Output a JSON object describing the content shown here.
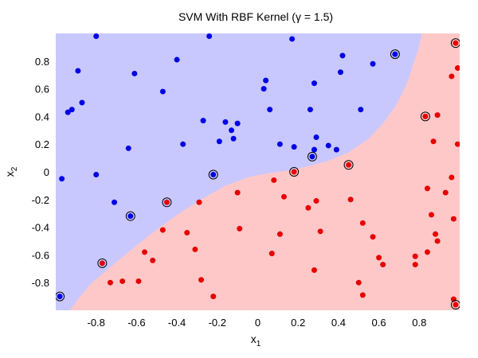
{
  "chart_data": {
    "type": "scatter",
    "title": "SVM With RBF Kernel (γ = 1.5)",
    "xlabel": "x",
    "xlabel_sub": "1",
    "ylabel": "x",
    "ylabel_sub": "2",
    "xlim": [
      -1,
      1
    ],
    "ylim": [
      -1,
      1
    ],
    "xticks": [
      -0.8,
      -0.6,
      -0.4,
      -0.2,
      0,
      0.2,
      0.4,
      0.6,
      0.8
    ],
    "xtick_labels": [
      "-0.8",
      "-0.6",
      "-0.4",
      "-0.2",
      "0",
      "0.2",
      "0.4",
      "0.6",
      "0.8"
    ],
    "yticks": [
      -0.8,
      -0.6,
      -0.4,
      -0.2,
      0,
      0.2,
      0.4,
      0.6,
      0.8
    ],
    "ytick_labels": [
      "-0.8",
      "-0.6",
      "-0.4",
      "-0.2",
      "0",
      "0.2",
      "0.4",
      "0.6",
      "0.8"
    ],
    "grid": false,
    "colors": {
      "class_a_region": "#c8c8ff",
      "class_b_region": "#ffc8c8",
      "class_a_point": "#0000e6",
      "class_b_point": "#e60000",
      "support_vector_ring": "#000000"
    },
    "boundary": {
      "x": [
        -0.93,
        -0.88,
        -0.82,
        -0.74,
        -0.64,
        -0.52,
        -0.4,
        -0.28,
        -0.16,
        -0.05,
        0.05,
        0.15,
        0.25,
        0.35,
        0.45,
        0.55,
        0.62,
        0.68,
        0.72,
        0.75,
        0.77,
        0.79,
        0.8,
        0.81,
        0.81
      ],
      "y": [
        -1.0,
        -0.9,
        -0.8,
        -0.7,
        -0.58,
        -0.44,
        -0.31,
        -0.2,
        -0.1,
        -0.04,
        -0.01,
        0.01,
        0.04,
        0.08,
        0.14,
        0.24,
        0.35,
        0.47,
        0.58,
        0.68,
        0.78,
        0.86,
        0.92,
        0.97,
        1.0
      ]
    },
    "series": [
      {
        "class": "blue",
        "x": [
          -0.8,
          -0.24,
          -0.4,
          -0.94,
          -0.92,
          -0.89,
          -0.87,
          -0.61,
          -0.47,
          -0.27,
          -0.16,
          -0.12,
          -0.13,
          -0.1,
          -0.19,
          0.04,
          0.03,
          0.17,
          0.28,
          0.41,
          0.42,
          0.57,
          0.51,
          0.26,
          0.28,
          0.29,
          0.35,
          0.39,
          -0.37,
          -0.64,
          -0.8,
          -0.97,
          -0.71,
          0.18,
          0.11,
          0.06
        ],
        "y": [
          0.98,
          0.98,
          0.81,
          0.43,
          0.45,
          0.73,
          0.5,
          0.71,
          0.58,
          0.37,
          0.36,
          0.24,
          0.3,
          0.35,
          0.22,
          0.66,
          0.6,
          0.96,
          0.64,
          0.72,
          0.84,
          0.78,
          0.45,
          0.45,
          0.16,
          0.25,
          0.19,
          0.16,
          0.2,
          0.17,
          -0.02,
          -0.05,
          -0.22,
          0.18,
          0.2,
          0.45
        ]
      },
      {
        "class": "red",
        "x": [
          0.99,
          0.96,
          0.99,
          0.89,
          0.87,
          0.84,
          0.96,
          0.97,
          0.88,
          0.93,
          0.86,
          0.78,
          0.6,
          0.57,
          0.52,
          0.46,
          0.31,
          0.29,
          0.25,
          0.13,
          0.08,
          0.11,
          -0.09,
          -0.1,
          -0.29,
          -0.31,
          -0.47,
          -0.52,
          -0.59,
          -0.67,
          -0.73,
          -0.56,
          -0.35,
          -0.28,
          -0.22,
          0.07,
          0.28,
          0.5,
          0.52,
          0.62,
          0.78,
          0.84,
          0.89,
          0.97
        ],
        "y": [
          0.75,
          0.69,
          0.2,
          0.41,
          0.22,
          -0.12,
          -0.04,
          -0.34,
          -0.45,
          -0.15,
          -0.31,
          -0.61,
          -0.62,
          -0.47,
          -0.37,
          -0.2,
          -0.43,
          -0.21,
          -0.26,
          -0.18,
          -0.06,
          -0.45,
          -0.41,
          -0.15,
          -0.22,
          -0.56,
          -0.42,
          -0.64,
          -0.79,
          -0.79,
          -0.8,
          -0.58,
          -0.44,
          -0.78,
          -0.9,
          -0.59,
          -0.71,
          -0.8,
          -0.89,
          -0.67,
          -0.67,
          -0.58,
          -0.5,
          -0.92
        ]
      }
    ],
    "support_vectors": [
      {
        "class": "blue",
        "x": [
          0.68,
          0.27,
          -0.22,
          -0.63,
          -0.98
        ],
        "y": [
          0.85,
          0.11,
          -0.02,
          -0.32,
          -0.9
        ]
      },
      {
        "class": "red",
        "x": [
          0.98,
          0.83,
          0.45,
          0.18,
          -0.45,
          -0.77,
          0.98
        ],
        "y": [
          0.93,
          0.4,
          0.05,
          0.0,
          -0.22,
          -0.66,
          -0.96
        ]
      }
    ]
  }
}
